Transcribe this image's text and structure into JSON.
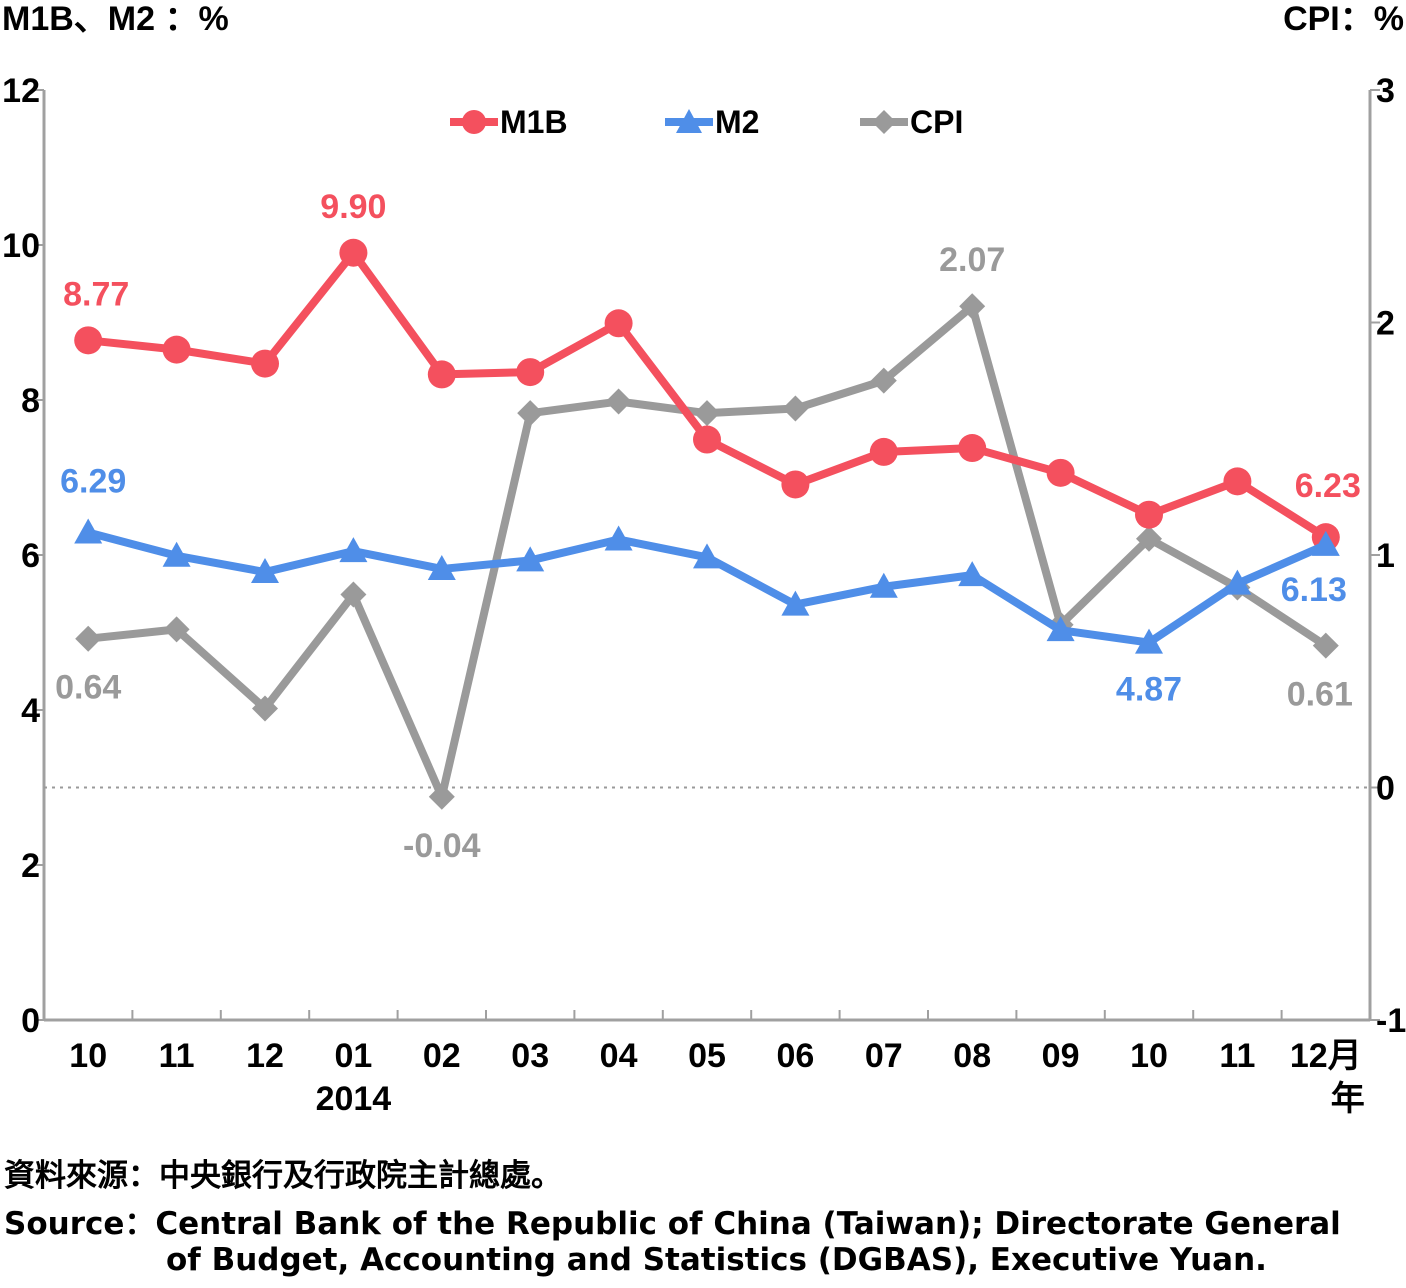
{
  "colors": {
    "m1b": "#f4505e",
    "m2": "#4f8ee8",
    "cpi": "#9a9a9a",
    "axis": "#a0a0a0"
  },
  "units": {
    "left": "M1B、M2 ：%",
    "right": "CPI：%"
  },
  "source_zh": "資料來源：中央銀行及行政院主計總處。",
  "source_en_line1": "Source：Central Bank of the Republic of China (Taiwan); Directorate General",
  "source_en_line2": "of Budget, Accounting and Statistics (DGBAS), Executive Yuan.",
  "chart_data": {
    "type": "line",
    "categories": [
      "10",
      "11",
      "12",
      "01",
      "02",
      "03",
      "04",
      "05",
      "06",
      "07",
      "08",
      "09",
      "10",
      "11",
      "12"
    ],
    "x_suffix": "月",
    "year_label": "2014",
    "year_label_position": "01",
    "x_unit_year": "年",
    "left_axis": {
      "ylim": [
        0,
        12
      ],
      "ticks": [
        0,
        2,
        4,
        6,
        8,
        10,
        12
      ]
    },
    "right_axis": {
      "ylim": [
        -1,
        3
      ],
      "ticks": [
        -1,
        0,
        1,
        2,
        3
      ]
    },
    "grid": false,
    "legend": {
      "position": "top-center"
    },
    "series": [
      {
        "name": "M1B",
        "key": "m1b",
        "axis": "left",
        "marker": "circle",
        "values": [
          8.77,
          8.65,
          8.47,
          9.9,
          8.33,
          8.36,
          8.99,
          7.49,
          6.91,
          7.33,
          7.38,
          7.06,
          6.52,
          6.95,
          6.23
        ],
        "labels": [
          {
            "index": 0,
            "text": "8.77"
          },
          {
            "index": 3,
            "text": "9.90"
          },
          {
            "index": 14,
            "text": "6.23"
          }
        ]
      },
      {
        "name": "M2",
        "key": "m2",
        "axis": "left",
        "marker": "triangle",
        "values": [
          6.29,
          5.99,
          5.78,
          6.05,
          5.82,
          5.93,
          6.2,
          5.97,
          5.36,
          5.59,
          5.74,
          5.03,
          4.87,
          5.63,
          6.13
        ],
        "labels": [
          {
            "index": 0,
            "text": "6.29"
          },
          {
            "index": 12,
            "text": "4.87"
          },
          {
            "index": 14,
            "text": "6.13"
          }
        ]
      },
      {
        "name": "CPI",
        "key": "cpi",
        "axis": "right",
        "marker": "diamond",
        "values": [
          0.64,
          0.68,
          0.34,
          0.83,
          -0.04,
          1.61,
          1.66,
          1.61,
          1.63,
          1.75,
          2.07,
          0.7,
          1.07,
          0.86,
          0.61
        ],
        "labels": [
          {
            "index": 0,
            "text": "0.64"
          },
          {
            "index": 4,
            "text": "-0.04"
          },
          {
            "index": 10,
            "text": "2.07"
          },
          {
            "index": 14,
            "text": "0.61"
          }
        ]
      }
    ]
  }
}
